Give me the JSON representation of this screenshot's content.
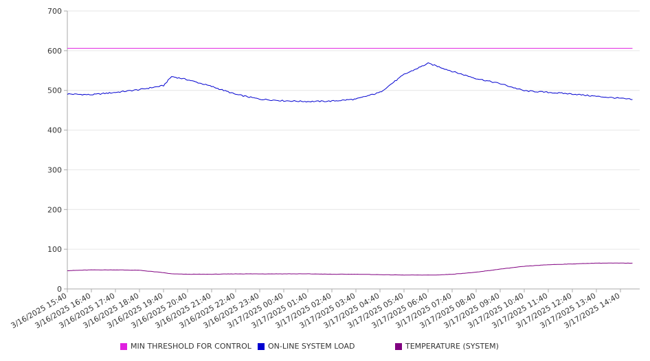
{
  "chart_data": {
    "type": "line",
    "title": "",
    "xlabel": "",
    "ylabel": "",
    "ylim": [
      0,
      700
    ],
    "yticks": [
      0,
      100,
      200,
      300,
      400,
      500,
      600,
      700
    ],
    "x_tick_labels": [
      "3/16/2025 15:40",
      "3/16/2025 16:40",
      "3/16/2025 17:40",
      "3/16/2025 18:40",
      "3/16/2025 19:40",
      "3/16/2025 20:40",
      "3/16/2025 21:40",
      "3/16/2025 22:40",
      "3/16/2025 23:40",
      "3/17/2025 00:40",
      "3/17/2025 01:40",
      "3/17/2025 02:40",
      "3/17/2025 03:40",
      "3/17/2025 04:40",
      "3/17/2025 05:40",
      "3/17/2025 06:40",
      "3/17/2025 07:40",
      "3/17/2025 08:40",
      "3/17/2025 09:40",
      "3/17/2025 10:40",
      "3/17/2025 11:40",
      "3/17/2025 12:40",
      "3/17/2025 13:40",
      "3/17/2025 14:40"
    ],
    "grid": true,
    "legend_position": "bottom",
    "x": [
      "3/16/2025 15:40",
      "3/16/2025 16:40",
      "3/16/2025 17:40",
      "3/16/2025 18:40",
      "3/16/2025 19:40",
      "3/16/2025 20:00",
      "3/16/2025 20:40",
      "3/16/2025 21:40",
      "3/16/2025 22:40",
      "3/16/2025 23:40",
      "3/17/2025 00:40",
      "3/17/2025 01:40",
      "3/17/2025 02:40",
      "3/17/2025 03:40",
      "3/17/2025 04:40",
      "3/17/2025 05:40",
      "3/17/2025 06:40",
      "3/17/2025 07:00",
      "3/17/2025 07:40",
      "3/17/2025 08:40",
      "3/17/2025 09:40",
      "3/17/2025 10:40",
      "3/17/2025 11:40",
      "3/17/2025 12:40",
      "3/17/2025 13:40",
      "3/17/2025 14:40",
      "3/17/2025 15:10"
    ],
    "series": [
      {
        "name": "MIN THRESHOLD FOR CONTROL",
        "color": "#e020e0",
        "values": [
          606,
          606,
          606,
          606,
          606,
          606,
          606,
          606,
          606,
          606,
          606,
          606,
          606,
          606,
          606,
          606,
          606,
          606,
          606,
          606,
          606,
          606,
          606,
          606,
          606,
          606,
          606
        ]
      },
      {
        "name": "ON-LINE SYSTEM LOAD",
        "color": "#0000d0",
        "values": [
          491,
          489,
          495,
          502,
          512,
          535,
          527,
          510,
          490,
          478,
          474,
          472,
          473,
          478,
          495,
          540,
          568,
          562,
          548,
          530,
          517,
          499,
          495,
          491,
          485,
          480,
          477
        ]
      },
      {
        "name": "TEMPERATURE (SYSTEM)",
        "color": "#800080",
        "values": [
          46,
          48,
          48,
          47,
          41,
          38,
          37,
          37,
          38,
          38,
          38,
          38,
          37,
          37,
          36,
          35,
          35,
          35,
          37,
          42,
          50,
          57,
          61,
          63,
          65,
          65,
          65
        ]
      }
    ]
  }
}
